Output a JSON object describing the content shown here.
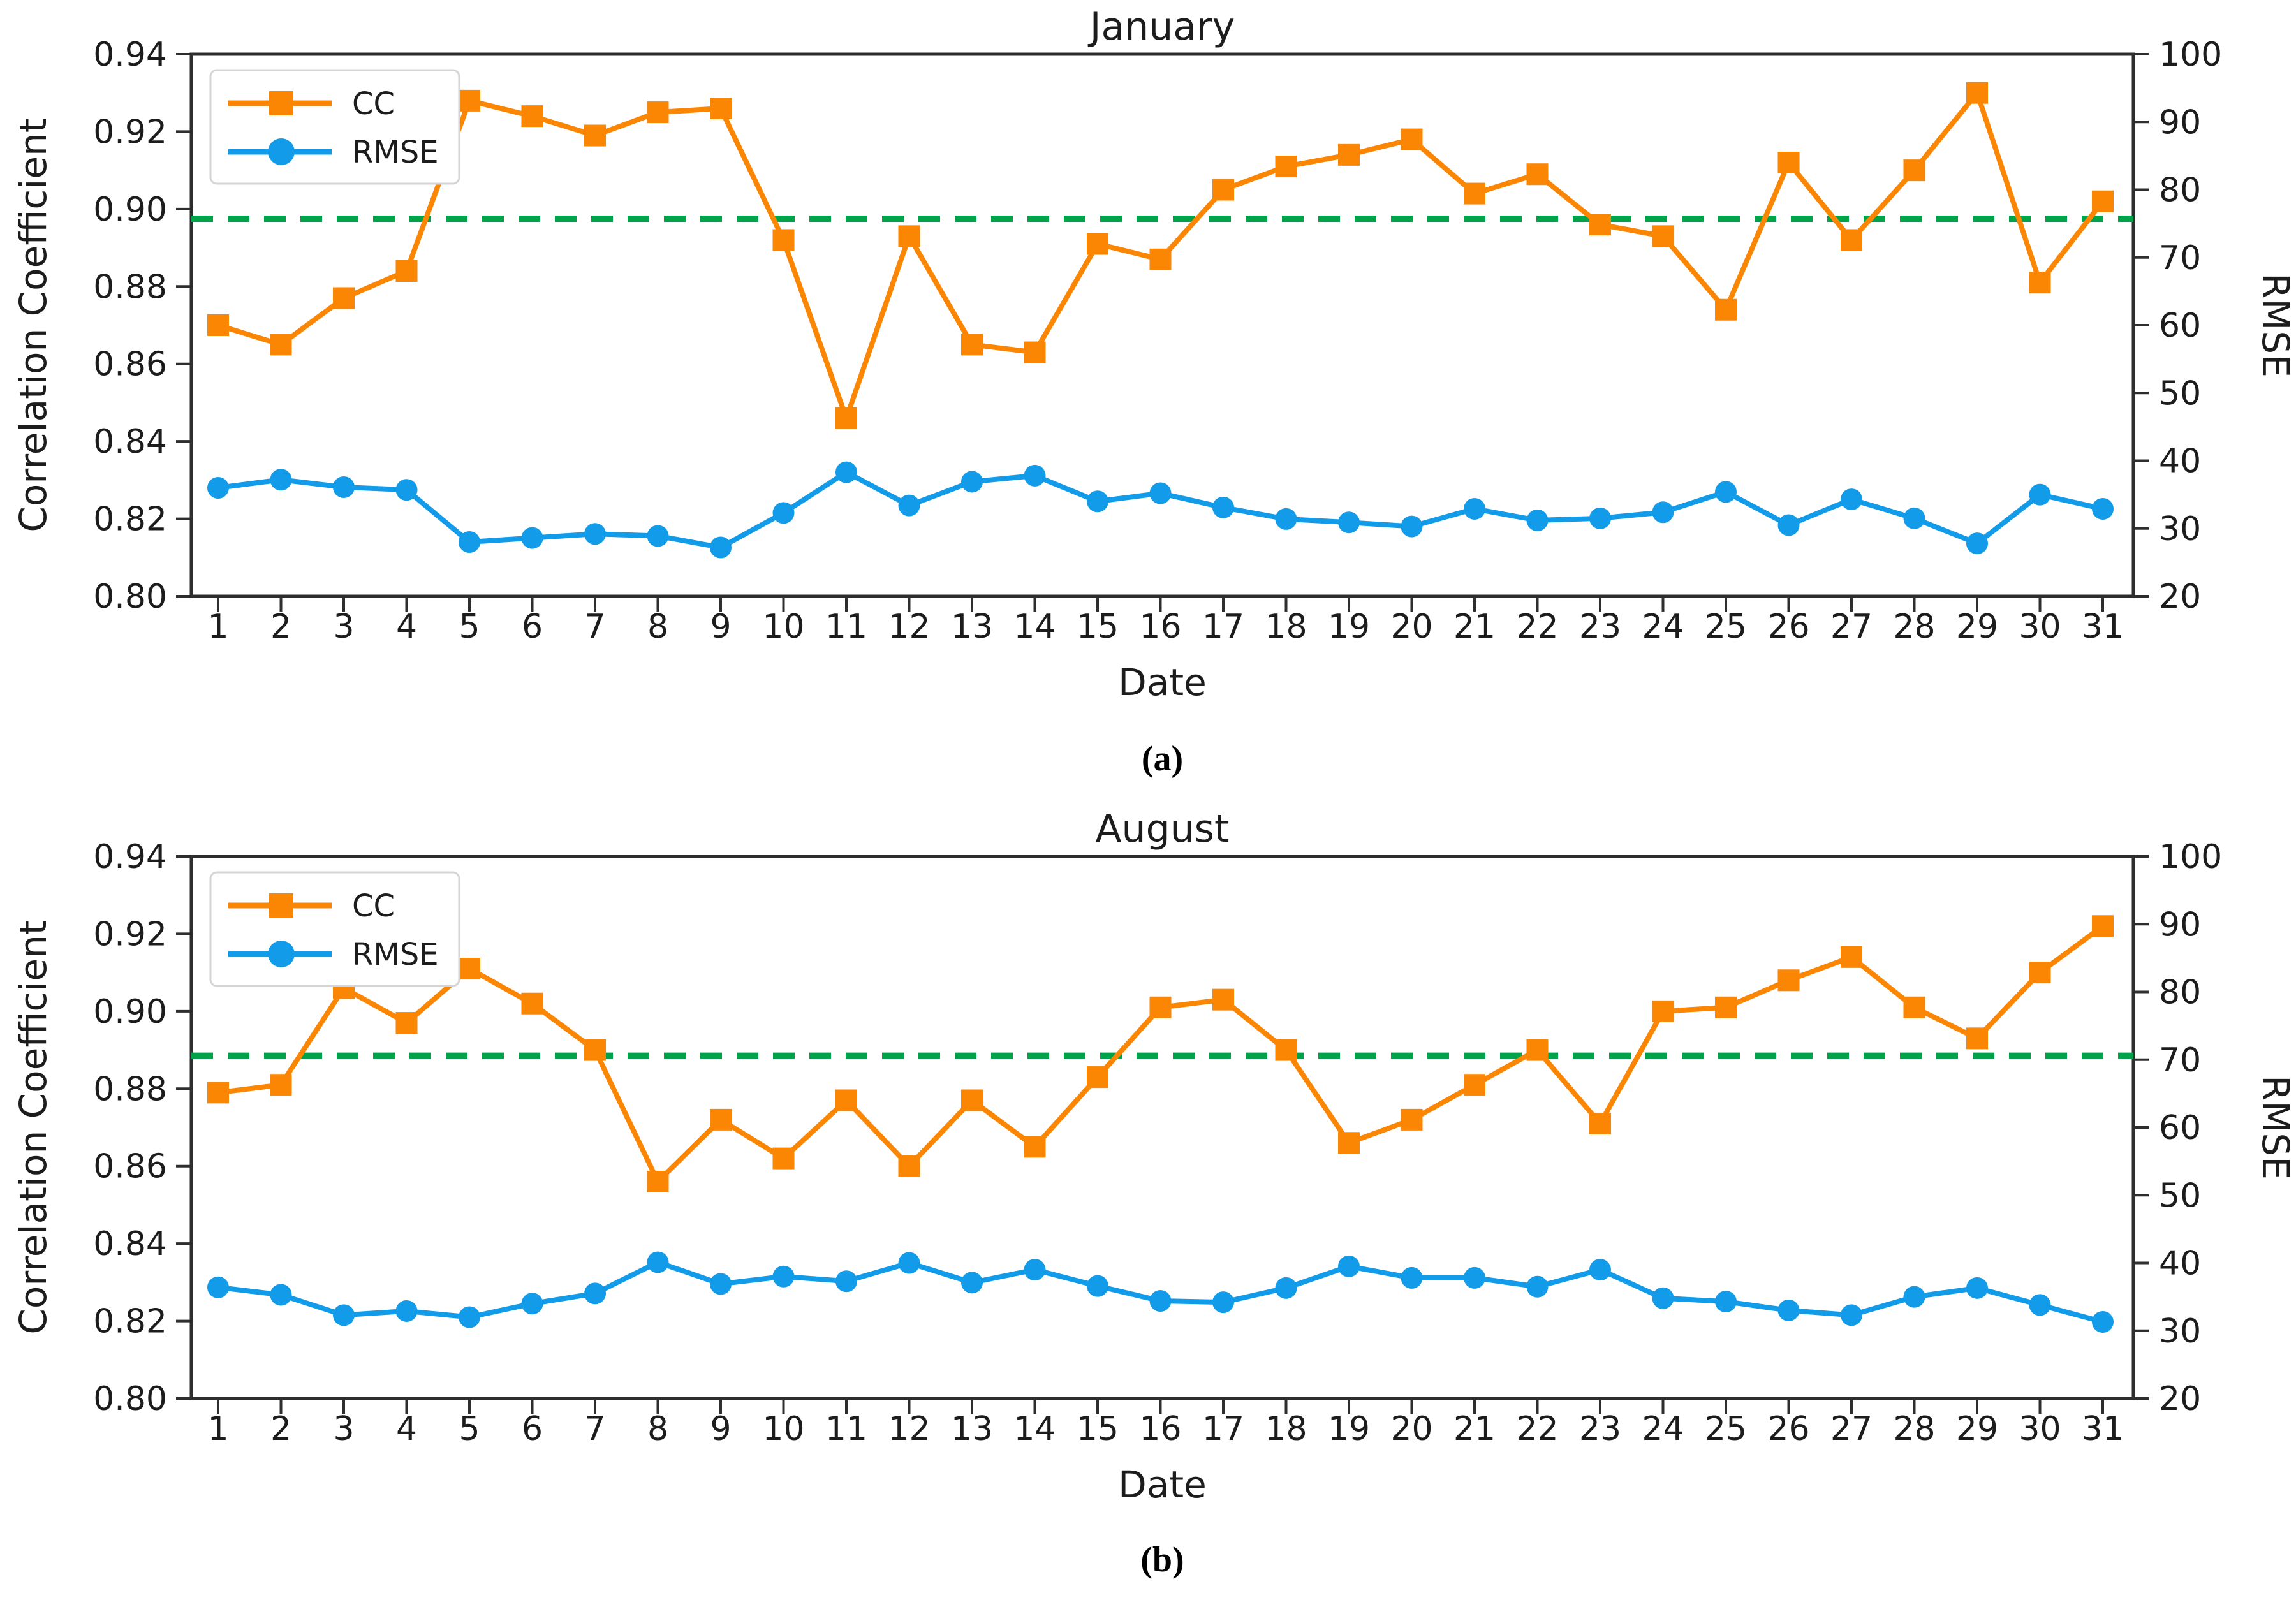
{
  "figure": {
    "background": "#ffffff",
    "colors": {
      "cc_orange": "#FB8604",
      "rmse_blue": "#129BE8",
      "mean_green": "#00A34A",
      "spine": "#2E2E2E",
      "text": "#1C1C1C",
      "legend_border": "#D5D5D5",
      "legend_bg": "#FFFFFF"
    },
    "legend": {
      "cc_label": "CC",
      "rmse_label": "RMSE"
    },
    "captions": {
      "a": "(a)",
      "b": "(b)"
    }
  },
  "chart_data": [
    {
      "type": "line",
      "title": "January",
      "caption": "(a)",
      "xlabel": "Date",
      "ylabel_left": "Correlation Coefficient",
      "ylabel_right": "RMSE",
      "x": [
        1,
        2,
        3,
        4,
        5,
        6,
        7,
        8,
        9,
        10,
        11,
        12,
        13,
        14,
        15,
        16,
        17,
        18,
        19,
        20,
        21,
        22,
        23,
        24,
        25,
        26,
        27,
        28,
        29,
        30,
        31
      ],
      "ylim_left": [
        0.8,
        0.94
      ],
      "yticks_left": [
        0.8,
        0.82,
        0.84,
        0.86,
        0.88,
        0.9,
        0.92,
        0.94
      ],
      "ylim_right": [
        20,
        100
      ],
      "yticks_right": [
        20,
        30,
        40,
        50,
        60,
        70,
        80,
        90,
        100
      ],
      "grid": false,
      "legend_position": "upper left",
      "mean_cc_line": 0.8975,
      "series": [
        {
          "name": "CC",
          "axis": "left",
          "marker": "square",
          "values": [
            0.87,
            0.865,
            0.877,
            0.884,
            0.928,
            0.924,
            0.919,
            0.925,
            0.926,
            0.892,
            0.846,
            0.893,
            0.865,
            0.863,
            0.891,
            0.887,
            0.905,
            0.911,
            0.914,
            0.918,
            0.904,
            0.909,
            0.896,
            0.893,
            0.874,
            0.912,
            0.892,
            0.91,
            0.93,
            0.881,
            0.902
          ]
        },
        {
          "name": "RMSE",
          "axis": "right",
          "marker": "circle",
          "values": [
            36.0,
            37.2,
            36.1,
            35.7,
            28.0,
            28.6,
            29.2,
            28.9,
            27.2,
            32.3,
            38.3,
            33.4,
            36.9,
            37.8,
            34.0,
            35.2,
            33.1,
            31.4,
            30.9,
            30.3,
            32.9,
            31.2,
            31.5,
            32.4,
            35.4,
            30.5,
            34.3,
            31.5,
            27.8,
            35.0,
            32.9
          ]
        }
      ]
    },
    {
      "type": "line",
      "title": "August",
      "caption": "(b)",
      "xlabel": "Date",
      "ylabel_left": "Correlation Coefficient",
      "ylabel_right": "RMSE",
      "x": [
        1,
        2,
        3,
        4,
        5,
        6,
        7,
        8,
        9,
        10,
        11,
        12,
        13,
        14,
        15,
        16,
        17,
        18,
        19,
        20,
        21,
        22,
        23,
        24,
        25,
        26,
        27,
        28,
        29,
        30,
        31
      ],
      "ylim_left": [
        0.8,
        0.94
      ],
      "yticks_left": [
        0.8,
        0.82,
        0.84,
        0.86,
        0.88,
        0.9,
        0.92,
        0.94
      ],
      "ylim_right": [
        20,
        100
      ],
      "yticks_right": [
        20,
        30,
        40,
        50,
        60,
        70,
        80,
        90,
        100
      ],
      "grid": false,
      "legend_position": "upper left",
      "mean_cc_line": 0.8885,
      "series": [
        {
          "name": "CC",
          "axis": "left",
          "marker": "square",
          "values": [
            0.879,
            0.881,
            0.906,
            0.897,
            0.911,
            0.902,
            0.89,
            0.856,
            0.872,
            0.862,
            0.877,
            0.86,
            0.877,
            0.865,
            0.883,
            0.901,
            0.903,
            0.89,
            0.866,
            0.872,
            0.881,
            0.89,
            0.871,
            0.9,
            0.901,
            0.908,
            0.914,
            0.901,
            0.893,
            0.91,
            0.922
          ]
        },
        {
          "name": "RMSE",
          "axis": "right",
          "marker": "circle",
          "values": [
            36.4,
            35.3,
            32.3,
            32.9,
            32.0,
            34.0,
            35.5,
            40.1,
            36.9,
            38.0,
            37.3,
            40.0,
            37.1,
            39.0,
            36.6,
            34.4,
            34.2,
            36.3,
            39.5,
            37.8,
            37.8,
            36.5,
            39.0,
            34.8,
            34.3,
            33.0,
            32.3,
            35.0,
            36.3,
            33.8,
            31.3
          ]
        }
      ]
    }
  ]
}
